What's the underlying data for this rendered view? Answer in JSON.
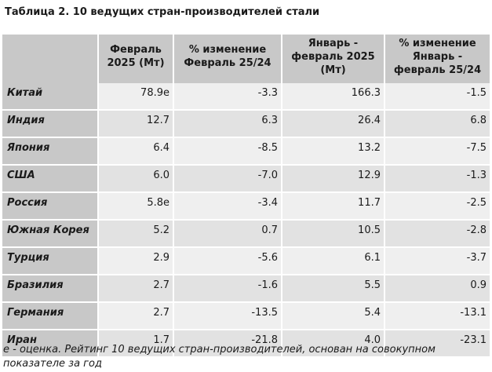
{
  "title": "Таблица 2. 10 ведущих стран-производителей стали",
  "headers": [
    "",
    "Февраль 2025 (Мт)",
    "% изменение Февраль 25/24",
    "Январь - февраль 2025 (Мт)",
    "% изменение Январь - февраль 25/24"
  ],
  "rows": [
    {
      "country": "Китай",
      "feb": "78.9e",
      "feb_change": "-3.3",
      "janfeb": "166.3",
      "janfeb_change": "-1.5"
    },
    {
      "country": "Индия",
      "feb": "12.7",
      "feb_change": "6.3",
      "janfeb": "26.4",
      "janfeb_change": "6.8"
    },
    {
      "country": "Япония",
      "feb": "6.4",
      "feb_change": "-8.5",
      "janfeb": "13.2",
      "janfeb_change": "-7.5"
    },
    {
      "country": "США",
      "feb": "6.0",
      "feb_change": "-7.0",
      "janfeb": "12.9",
      "janfeb_change": "-1.3"
    },
    {
      "country": "Россия",
      "feb": "5.8e",
      "feb_change": "-3.4",
      "janfeb": "11.7",
      "janfeb_change": "-2.5"
    },
    {
      "country": "Южная Корея",
      "feb": "5.2",
      "feb_change": "0.7",
      "janfeb": "10.5",
      "janfeb_change": "-2.8"
    },
    {
      "country": "Турция",
      "feb": "2.9",
      "feb_change": "-5.6",
      "janfeb": "6.1",
      "janfeb_change": "-3.7"
    },
    {
      "country": "Бразилия",
      "feb": "2.7",
      "feb_change": "-1.6",
      "janfeb": "5.5",
      "janfeb_change": "0.9"
    },
    {
      "country": "Германия",
      "feb": "2.7",
      "feb_change": "-13.5",
      "janfeb": "5.4",
      "janfeb_change": "-13.1"
    },
    {
      "country": "Иран",
      "feb": "1.7",
      "feb_change": "-21.8",
      "janfeb": "4.0",
      "janfeb_change": "-23.1"
    }
  ],
  "footnote": "e - оценка. Рейтинг 10 ведущих стран-производителей, основан на совокупном показателе за год"
}
